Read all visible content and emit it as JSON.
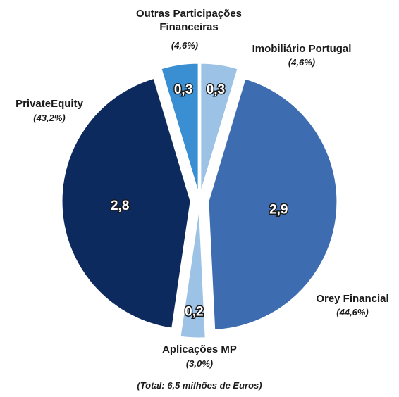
{
  "chart_data": {
    "type": "pie",
    "categories": [
      "Imobiliário Portugal",
      "Orey Financial",
      "Aplicações MP",
      "PrivateEquity",
      "Outras Participações Financeiras"
    ],
    "values": [
      0.3,
      2.9,
      0.2,
      2.8,
      0.3
    ],
    "value_labels": [
      "0,3",
      "2,9",
      "0,2",
      "2,8",
      "0,3"
    ],
    "percentages": [
      4.6,
      44.6,
      3.0,
      43.2,
      4.6
    ],
    "percentage_labels": [
      "(4,6%)",
      "(44,6%)",
      "(3,0%)",
      "(43,2%)",
      "(4,6%)"
    ],
    "colors": [
      "#9cc2e5",
      "#3d6cb0",
      "#9cc2e5",
      "#0c2a5e",
      "#3a8fd3"
    ],
    "footnote": "(Total: 6,5 milhões de Euros)"
  }
}
